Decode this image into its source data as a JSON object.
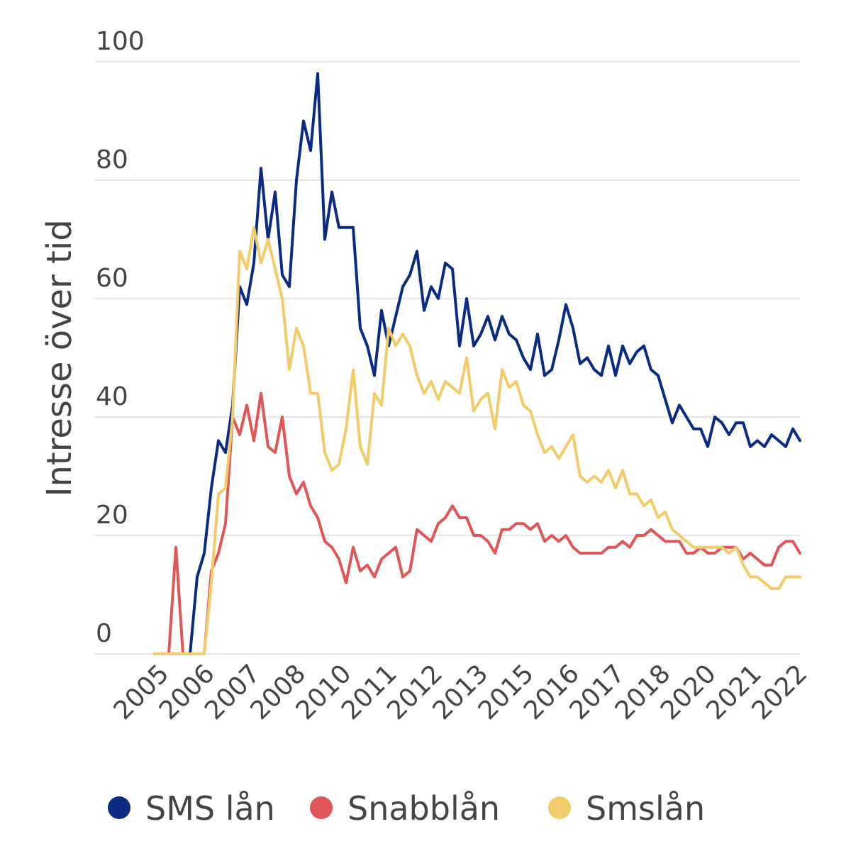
{
  "chart_data": {
    "type": "line",
    "title": "",
    "xlabel": "",
    "ylabel": "Intresse över tid",
    "ylim": [
      0,
      100
    ],
    "yticks": [
      0,
      20,
      40,
      60,
      80,
      100
    ],
    "x_tick_labels": [
      "2005",
      "2006",
      "2007",
      "2008",
      "2010",
      "2011",
      "2012",
      "2013",
      "2015",
      "2016",
      "2017",
      "2018",
      "2020",
      "2021",
      "2022"
    ],
    "x_range": [
      "2005",
      "2022"
    ],
    "grid": "horizontal",
    "legend_position": "bottom",
    "series": [
      {
        "name": "SMS lån",
        "color": "#0b2a82",
        "values": [
          0,
          0,
          0,
          0,
          0,
          0,
          13,
          17,
          28,
          36,
          34,
          42,
          62,
          59,
          66,
          82,
          70,
          78,
          64,
          62,
          80,
          90,
          85,
          98,
          70,
          78,
          72,
          72,
          72,
          55,
          52,
          47,
          58,
          52,
          57,
          62,
          64,
          68,
          58,
          62,
          60,
          66,
          65,
          52,
          60,
          52,
          54,
          57,
          53,
          57,
          54,
          53,
          50,
          48,
          54,
          47,
          48,
          53,
          59,
          55,
          49,
          50,
          48,
          47,
          52,
          47,
          52,
          49,
          51,
          52,
          48,
          47,
          43,
          39,
          42,
          40,
          38,
          38,
          35,
          40,
          39,
          37,
          39,
          39,
          35,
          36,
          35,
          37,
          36,
          35,
          38,
          36
        ]
      },
      {
        "name": "Snabblån",
        "color": "#e05558",
        "values": [
          0,
          0,
          0,
          18,
          0,
          0,
          0,
          0,
          14,
          17,
          22,
          40,
          37,
          42,
          36,
          44,
          35,
          34,
          40,
          30,
          27,
          29,
          25,
          23,
          19,
          18,
          16,
          12,
          18,
          14,
          15,
          13,
          16,
          17,
          18,
          13,
          14,
          21,
          20,
          19,
          22,
          23,
          25,
          23,
          23,
          20,
          20,
          19,
          17,
          21,
          21,
          22,
          22,
          21,
          22,
          19,
          20,
          19,
          20,
          18,
          17,
          17,
          17,
          17,
          18,
          18,
          19,
          18,
          20,
          20,
          21,
          20,
          19,
          19,
          19,
          17,
          17,
          18,
          17,
          17,
          18,
          18,
          18,
          16,
          17,
          16,
          15,
          15,
          18,
          19,
          19,
          17
        ]
      },
      {
        "name": "Smslån",
        "color": "#f0cc6a",
        "values": [
          0,
          0,
          0,
          0,
          0,
          0,
          0,
          0,
          12,
          27,
          28,
          40,
          68,
          65,
          72,
          66,
          70,
          65,
          60,
          48,
          55,
          52,
          44,
          44,
          34,
          31,
          32,
          38,
          48,
          35,
          32,
          44,
          42,
          55,
          52,
          54,
          52,
          47,
          44,
          46,
          43,
          46,
          45,
          44,
          50,
          41,
          43,
          44,
          38,
          48,
          45,
          46,
          42,
          41,
          37,
          34,
          35,
          33,
          35,
          37,
          30,
          29,
          30,
          29,
          31,
          28,
          31,
          27,
          27,
          25,
          26,
          23,
          24,
          21,
          20,
          19,
          18,
          18,
          18,
          18,
          18,
          17,
          18,
          15,
          13,
          13,
          12,
          11,
          11,
          13,
          13,
          13
        ]
      }
    ]
  }
}
